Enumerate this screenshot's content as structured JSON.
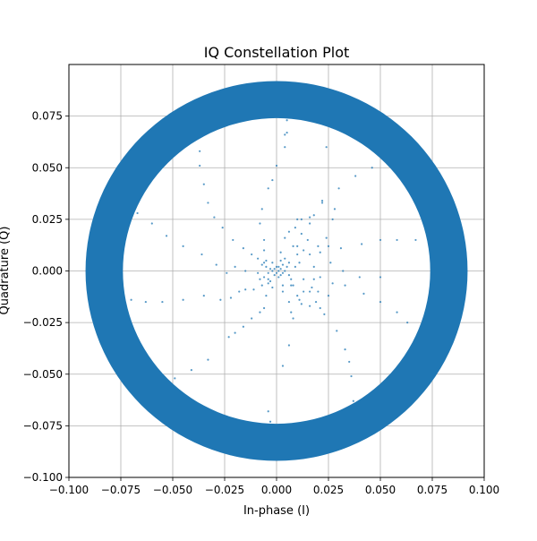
{
  "chart_data": {
    "type": "scatter",
    "title": "IQ Constellation Plot",
    "xlabel": "In-phase (I)",
    "ylabel": "Quadrature (Q)",
    "xlim": [
      -0.1,
      0.1
    ],
    "ylim": [
      -0.1,
      0.1
    ],
    "grid": true,
    "aspect": "equal",
    "xticks": [
      {
        "value": -0.1,
        "label": "−0.100"
      },
      {
        "value": -0.075,
        "label": "−0.075"
      },
      {
        "value": -0.05,
        "label": "−0.050"
      },
      {
        "value": -0.025,
        "label": "−0.025"
      },
      {
        "value": 0.0,
        "label": "0.000"
      },
      {
        "value": 0.025,
        "label": "0.025"
      },
      {
        "value": 0.05,
        "label": "0.050"
      },
      {
        "value": 0.075,
        "label": "0.075"
      },
      {
        "value": 0.1,
        "label": "0.100"
      }
    ],
    "yticks": [
      {
        "value": -0.1,
        "label": "−0.100"
      },
      {
        "value": -0.075,
        "label": "−0.075"
      },
      {
        "value": -0.05,
        "label": "−0.050"
      },
      {
        "value": -0.025,
        "label": "−0.025"
      },
      {
        "value": 0.0,
        "label": "0.000"
      },
      {
        "value": 0.025,
        "label": "0.025"
      },
      {
        "value": 0.05,
        "label": "0.050"
      },
      {
        "value": 0.075,
        "label": "0.075"
      }
    ],
    "colors": {
      "marker": "#1f77b4",
      "grid": "#b0b0b0",
      "axes": "#000000"
    },
    "ring": {
      "center": [
        0.0,
        0.0
      ],
      "inner_radius": 0.074,
      "outer_radius": 0.092
    },
    "series": [
      {
        "values": [
          [
            0.001,
            0.0
          ],
          [
            -0.001,
            0.001
          ],
          [
            0.0,
            -0.001
          ],
          [
            0.002,
            0.001
          ],
          [
            -0.002,
            0.0
          ],
          [
            0.001,
            0.002
          ],
          [
            0.003,
            -0.001
          ],
          [
            -0.001,
            -0.002
          ],
          [
            0.0,
            0.002
          ],
          [
            -0.003,
            0.001
          ],
          [
            0.002,
            -0.002
          ],
          [
            0.004,
            0.0
          ],
          [
            -0.004,
            -0.001
          ],
          [
            0.001,
            -0.003
          ],
          [
            0.005,
            0.002
          ],
          [
            -0.005,
            0.002
          ],
          [
            0.003,
            0.003
          ],
          [
            -0.002,
            0.004
          ],
          [
            0.006,
            -0.002
          ],
          [
            -0.006,
            -0.003
          ],
          [
            0.002,
            0.005
          ],
          [
            -0.003,
            -0.005
          ],
          [
            0.004,
            0.006
          ],
          [
            0.006,
            0.004
          ],
          [
            -0.005,
            0.005
          ],
          [
            -0.007,
            0.003
          ],
          [
            0.007,
            -0.004
          ],
          [
            0.003,
            -0.007
          ],
          [
            -0.004,
            -0.006
          ],
          [
            -0.008,
            -0.004
          ],
          [
            0.009,
            0.002
          ],
          [
            0.002,
            0.009
          ],
          [
            0.01,
            0.008
          ],
          [
            0.013,
            0.01
          ],
          [
            0.008,
            0.012
          ],
          [
            0.016,
            0.026
          ],
          [
            0.022,
            0.033
          ],
          [
            0.024,
            0.06
          ],
          [
            0.005,
            0.073
          ],
          [
            0.011,
            0.004
          ],
          [
            0.018,
            0.002
          ],
          [
            0.025,
            0.012
          ],
          [
            0.031,
            0.011
          ],
          [
            0.041,
            0.013
          ],
          [
            0.05,
            0.015
          ],
          [
            0.058,
            0.015
          ],
          [
            0.067,
            0.015
          ],
          [
            0.016,
            0.008
          ],
          [
            0.021,
            0.009
          ],
          [
            0.026,
            0.004
          ],
          [
            0.032,
            0.0
          ],
          [
            0.04,
            -0.003
          ],
          [
            0.05,
            -0.003
          ],
          [
            0.013,
            -0.004
          ],
          [
            0.017,
            -0.008
          ],
          [
            0.02,
            -0.01
          ],
          [
            0.025,
            -0.012
          ],
          [
            0.033,
            -0.007
          ],
          [
            0.042,
            -0.011
          ],
          [
            0.05,
            -0.015
          ],
          [
            0.058,
            -0.02
          ],
          [
            0.063,
            -0.025
          ],
          [
            0.008,
            -0.007
          ],
          [
            0.013,
            -0.01
          ],
          [
            0.016,
            -0.01
          ],
          [
            0.019,
            -0.015
          ],
          [
            0.023,
            -0.021
          ],
          [
            0.029,
            -0.029
          ],
          [
            0.033,
            -0.038
          ],
          [
            0.035,
            -0.044
          ],
          [
            0.036,
            -0.051
          ],
          [
            0.037,
            -0.063
          ],
          [
            0.003,
            -0.01
          ],
          [
            0.006,
            -0.015
          ],
          [
            0.007,
            -0.02
          ],
          [
            0.008,
            -0.023
          ],
          [
            0.006,
            -0.036
          ],
          [
            0.003,
            -0.046
          ],
          [
            -0.002,
            -0.008
          ],
          [
            -0.005,
            -0.012
          ],
          [
            -0.006,
            -0.018
          ],
          [
            -0.008,
            -0.02
          ],
          [
            -0.012,
            -0.023
          ],
          [
            -0.016,
            -0.027
          ],
          [
            -0.02,
            -0.03
          ],
          [
            -0.023,
            -0.032
          ],
          [
            -0.033,
            -0.043
          ],
          [
            -0.041,
            -0.048
          ],
          [
            -0.049,
            -0.052
          ],
          [
            -0.004,
            -0.068
          ],
          [
            -0.003,
            -0.073
          ],
          [
            -0.004,
            -0.004
          ],
          [
            -0.007,
            -0.007
          ],
          [
            -0.011,
            -0.009
          ],
          [
            -0.015,
            -0.009
          ],
          [
            -0.018,
            -0.01
          ],
          [
            -0.022,
            -0.013
          ],
          [
            -0.027,
            -0.014
          ],
          [
            -0.035,
            -0.012
          ],
          [
            -0.045,
            -0.014
          ],
          [
            -0.055,
            -0.015
          ],
          [
            -0.063,
            -0.015
          ],
          [
            -0.07,
            -0.014
          ],
          [
            -0.009,
            -0.001
          ],
          [
            -0.015,
            0.0
          ],
          [
            -0.02,
            0.002
          ],
          [
            -0.024,
            -0.001
          ],
          [
            -0.029,
            0.003
          ],
          [
            -0.036,
            0.008
          ],
          [
            -0.045,
            0.012
          ],
          [
            -0.053,
            0.017
          ],
          [
            -0.06,
            0.023
          ],
          [
            -0.067,
            0.028
          ],
          [
            -0.006,
            0.004
          ],
          [
            -0.009,
            0.006
          ],
          [
            -0.012,
            0.008
          ],
          [
            -0.016,
            0.011
          ],
          [
            -0.021,
            0.015
          ],
          [
            -0.026,
            0.021
          ],
          [
            -0.03,
            0.026
          ],
          [
            -0.033,
            0.033
          ],
          [
            -0.035,
            0.042
          ],
          [
            -0.037,
            0.051
          ],
          [
            -0.037,
            0.058
          ],
          [
            -0.006,
            0.01
          ],
          [
            -0.006,
            0.015
          ],
          [
            -0.008,
            0.023
          ],
          [
            -0.007,
            0.03
          ],
          [
            -0.004,
            0.04
          ],
          [
            -0.002,
            0.044
          ],
          [
            0.0,
            0.051
          ],
          [
            0.004,
            0.06
          ],
          [
            0.004,
            0.066
          ],
          [
            0.005,
            0.067
          ],
          [
            0.004,
            0.016
          ],
          [
            0.006,
            0.019
          ],
          [
            0.009,
            0.021
          ],
          [
            0.012,
            0.025
          ],
          [
            0.018,
            0.027
          ],
          [
            0.022,
            0.034
          ],
          [
            0.03,
            0.04
          ],
          [
            0.038,
            0.046
          ],
          [
            0.046,
            0.05
          ],
          [
            0.027,
            0.025
          ],
          [
            0.028,
            0.03
          ],
          [
            0.01,
            0.025
          ],
          [
            0.016,
            0.023
          ],
          [
            0.01,
            0.012
          ],
          [
            0.012,
            0.018
          ],
          [
            0.015,
            0.015
          ],
          [
            0.02,
            0.012
          ],
          [
            0.024,
            0.016
          ],
          [
            0.018,
            -0.004
          ],
          [
            0.021,
            -0.003
          ],
          [
            0.027,
            -0.006
          ],
          [
            0.011,
            -0.014
          ],
          [
            0.016,
            -0.017
          ],
          [
            0.021,
            -0.018
          ],
          [
            0.007,
            -0.007
          ],
          [
            0.01,
            -0.012
          ],
          [
            0.012,
            -0.016
          ]
        ]
      }
    ]
  }
}
